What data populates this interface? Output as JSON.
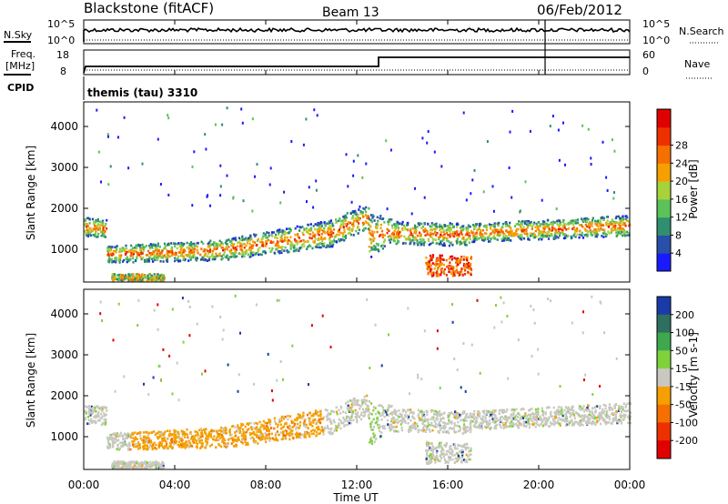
{
  "header": {
    "station": "Blackstone (fitACF)",
    "beam": "Beam 13",
    "date": "06/Feb/2012"
  },
  "noise_panel": {
    "left_label": "N.Sky",
    "left_ticks": [
      "10^5",
      "10^0"
    ],
    "right_ticks": [
      "10^5",
      "10^0"
    ],
    "right_label": "N.Search"
  },
  "freq_panel": {
    "left_label_line1": "Freq.",
    "left_label_line2": "[MHz]",
    "left_ticks": [
      "18",
      "8"
    ],
    "right_ticks": [
      "60",
      "0"
    ],
    "right_label": "Nave"
  },
  "cpid_panel": {
    "label": "CPID",
    "program": "themis (tau) 3310"
  },
  "time_axis": {
    "label": "Time UT",
    "ticks": [
      "00:00",
      "04:00",
      "08:00",
      "12:00",
      "16:00",
      "20:00",
      "00:00"
    ],
    "range_hours": [
      0,
      24
    ]
  },
  "chart_data": [
    {
      "type": "heatmap",
      "name": "power",
      "ylabel": "Slant Range [km]",
      "yticks": [
        1000,
        2000,
        3000,
        4000
      ],
      "ylim": [
        200,
        4600
      ],
      "xlim": [
        0,
        24
      ],
      "colorbar": {
        "label": "Power [dB]",
        "ticks": [
          "4",
          "8",
          "12",
          "16",
          "20",
          "24",
          "28"
        ],
        "colors": [
          "#1a1aff",
          "#2a4fa8",
          "#2f8f6f",
          "#5cc25c",
          "#a8d23c",
          "#f5a000",
          "#f57000",
          "#ee3000",
          "#e00000"
        ]
      },
      "bands": [
        {
          "t": [
            0.0,
            1.0
          ],
          "r_lo": [
            1350,
            1300
          ],
          "r_hi": [
            1800,
            1750
          ]
        },
        {
          "t": [
            1.0,
            6.0
          ],
          "r_lo": [
            700,
            750
          ],
          "r_hi": [
            1100,
            1250
          ]
        },
        {
          "t": [
            6.0,
            11.0
          ],
          "r_lo": [
            750,
            1100
          ],
          "r_hi": [
            1250,
            1750
          ]
        },
        {
          "t": [
            11.0,
            12.5
          ],
          "r_lo": [
            1150,
            1500
          ],
          "r_hi": [
            1800,
            2100
          ]
        },
        {
          "t": [
            12.5,
            13.5
          ],
          "r_lo": [
            800,
            1200
          ],
          "r_hi": [
            1900,
            1800
          ]
        },
        {
          "t": [
            13.5,
            17.0
          ],
          "r_lo": [
            1150,
            1100
          ],
          "r_hi": [
            1700,
            1650
          ]
        },
        {
          "t": [
            15.0,
            17.0
          ],
          "r_lo": [
            350,
            400
          ],
          "r_hi": [
            900,
            850
          ]
        },
        {
          "t": [
            17.0,
            24.0
          ],
          "r_lo": [
            1200,
            1350
          ],
          "r_hi": [
            1650,
            1850
          ]
        },
        {
          "t": [
            1.2,
            3.5
          ],
          "r_lo": [
            250,
            250
          ],
          "r_hi": [
            420,
            420
          ]
        }
      ]
    },
    {
      "type": "heatmap",
      "name": "velocity",
      "ylabel": "Slant Range [km]",
      "yticks": [
        1000,
        2000,
        3000,
        4000
      ],
      "ylim": [
        200,
        4600
      ],
      "xlim": [
        0,
        24
      ],
      "colorbar": {
        "label": "Velocity [m s-1]",
        "ticks": [
          "200",
          "100",
          "50",
          "15",
          "-15",
          "-50",
          "-100",
          "-200"
        ],
        "colors": [
          "#1a3aa8",
          "#2f6f5f",
          "#3fa84f",
          "#7fd23c",
          "#c8c8c0",
          "#f5a000",
          "#f57000",
          "#ee3000",
          "#e00000"
        ]
      },
      "bands": [
        {
          "t": [
            0.0,
            1.0
          ],
          "r_lo": [
            1350,
            1300
          ],
          "r_hi": [
            1800,
            1750
          ]
        },
        {
          "t": [
            1.0,
            6.0
          ],
          "r_lo": [
            700,
            750
          ],
          "r_hi": [
            1100,
            1250
          ]
        },
        {
          "t": [
            6.0,
            11.0
          ],
          "r_lo": [
            750,
            1100
          ],
          "r_hi": [
            1250,
            1750
          ]
        },
        {
          "t": [
            11.0,
            12.5
          ],
          "r_lo": [
            1150,
            1500
          ],
          "r_hi": [
            1800,
            2100
          ]
        },
        {
          "t": [
            12.5,
            13.5
          ],
          "r_lo": [
            800,
            1200
          ],
          "r_hi": [
            1900,
            1800
          ]
        },
        {
          "t": [
            13.5,
            17.0
          ],
          "r_lo": [
            1150,
            1100
          ],
          "r_hi": [
            1700,
            1650
          ]
        },
        {
          "t": [
            15.0,
            17.0
          ],
          "r_lo": [
            350,
            400
          ],
          "r_hi": [
            900,
            850
          ]
        },
        {
          "t": [
            17.0,
            24.0
          ],
          "r_lo": [
            1200,
            1350
          ],
          "r_hi": [
            1650,
            1850
          ]
        },
        {
          "t": [
            1.2,
            3.5
          ],
          "r_lo": [
            250,
            250
          ],
          "r_hi": [
            420,
            420
          ]
        }
      ]
    }
  ]
}
